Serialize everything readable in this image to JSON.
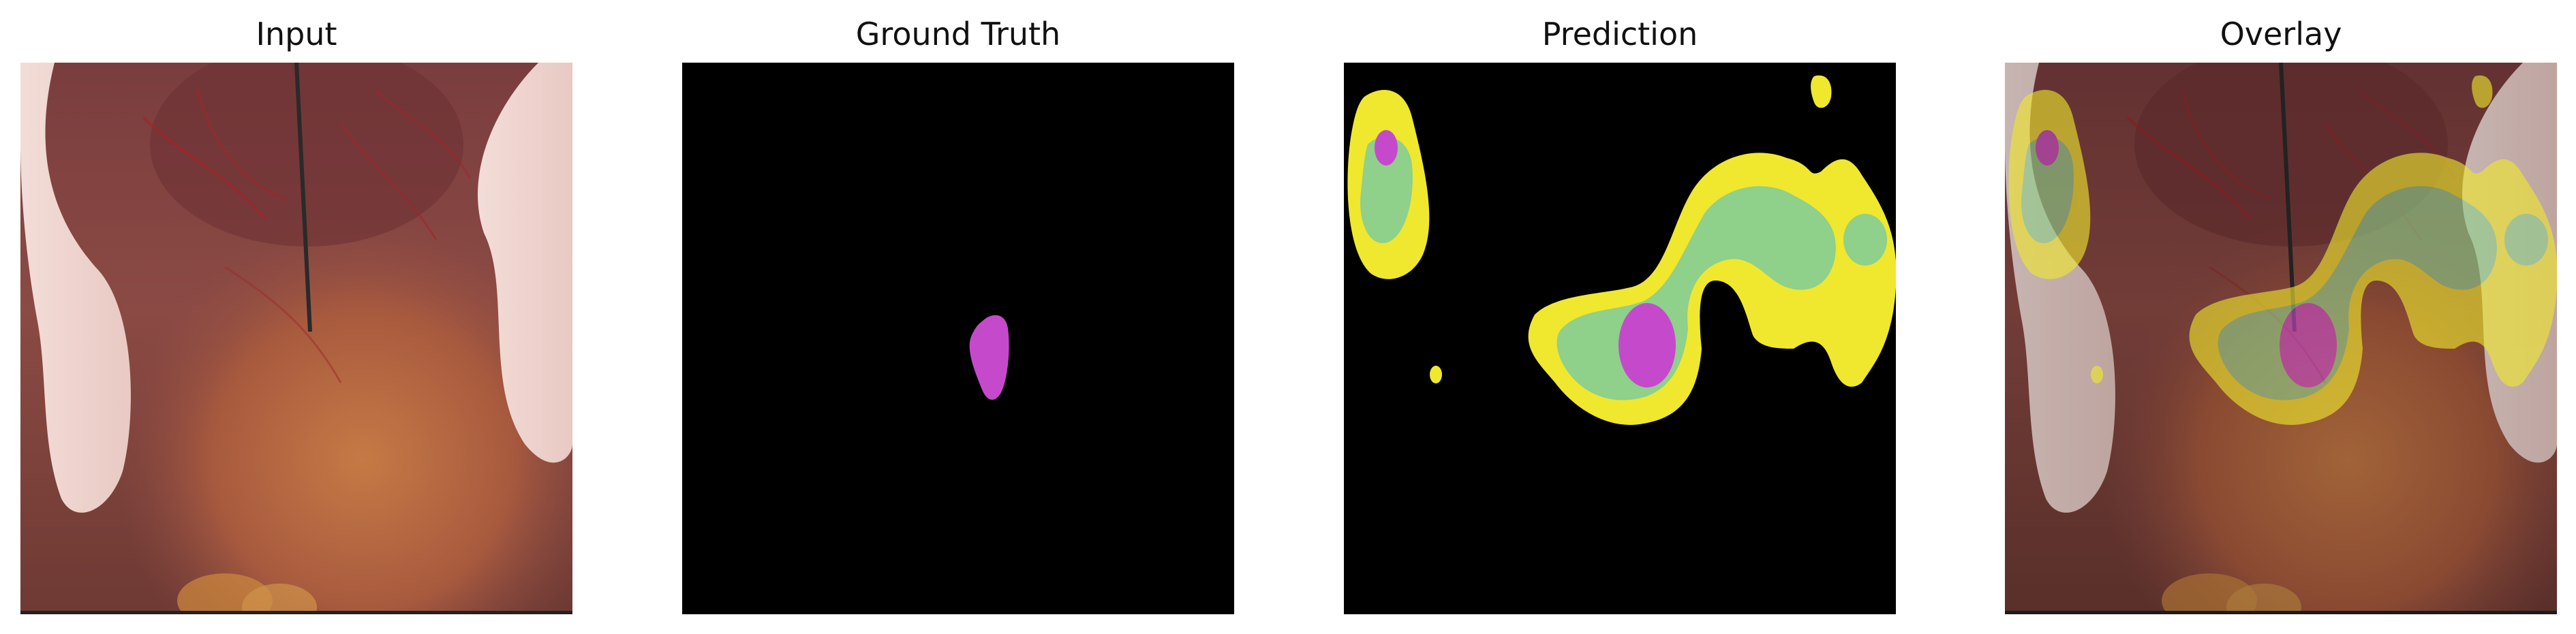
{
  "figure": {
    "panels": [
      {
        "id": "input",
        "title": "Input"
      },
      {
        "id": "ground-truth",
        "title": "Ground Truth"
      },
      {
        "id": "prediction",
        "title": "Prediction"
      },
      {
        "id": "overlay",
        "title": "Overlay"
      }
    ]
  },
  "colors": {
    "background": "#000000",
    "class_yellow": "#efe82e",
    "class_green": "#8fd08a",
    "class_magenta": "#c54acb",
    "tissue": "#8a4a44"
  }
}
